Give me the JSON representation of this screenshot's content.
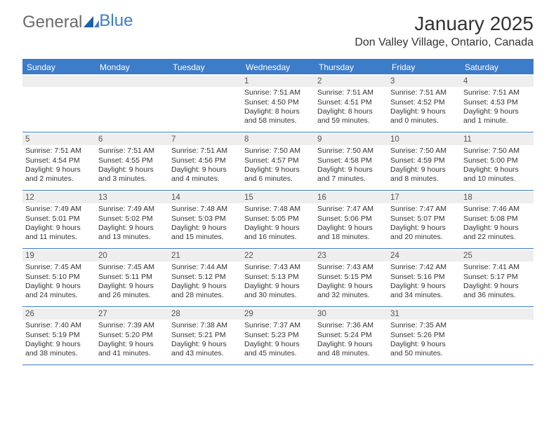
{
  "logo": {
    "part1": "General",
    "part2": "Blue"
  },
  "title": "January 2025",
  "location": "Don Valley Village, Ontario, Canada",
  "colors": {
    "accent": "#3d7cc9",
    "header_bg": "#3d7cc9",
    "header_text": "#ffffff",
    "daynum_bg": "#eeeeee",
    "text": "#333333",
    "background": "#ffffff",
    "logo_general": "#6a6a6a",
    "logo_blue": "#3d7cc9"
  },
  "typography": {
    "title_fontsize": 28,
    "location_fontsize": 16,
    "dayheader_fontsize": 12,
    "cell_fontsize": 10.5,
    "daynum_fontsize": 11.5
  },
  "day_headers": [
    "Sunday",
    "Monday",
    "Tuesday",
    "Wednesday",
    "Thursday",
    "Friday",
    "Saturday"
  ],
  "weeks": [
    [
      {
        "day": "",
        "sunrise": "",
        "sunset": "",
        "daylight1": "",
        "daylight2": ""
      },
      {
        "day": "",
        "sunrise": "",
        "sunset": "",
        "daylight1": "",
        "daylight2": ""
      },
      {
        "day": "",
        "sunrise": "",
        "sunset": "",
        "daylight1": "",
        "daylight2": ""
      },
      {
        "day": "1",
        "sunrise": "Sunrise: 7:51 AM",
        "sunset": "Sunset: 4:50 PM",
        "daylight1": "Daylight: 8 hours",
        "daylight2": "and 58 minutes."
      },
      {
        "day": "2",
        "sunrise": "Sunrise: 7:51 AM",
        "sunset": "Sunset: 4:51 PM",
        "daylight1": "Daylight: 8 hours",
        "daylight2": "and 59 minutes."
      },
      {
        "day": "3",
        "sunrise": "Sunrise: 7:51 AM",
        "sunset": "Sunset: 4:52 PM",
        "daylight1": "Daylight: 9 hours",
        "daylight2": "and 0 minutes."
      },
      {
        "day": "4",
        "sunrise": "Sunrise: 7:51 AM",
        "sunset": "Sunset: 4:53 PM",
        "daylight1": "Daylight: 9 hours",
        "daylight2": "and 1 minute."
      }
    ],
    [
      {
        "day": "5",
        "sunrise": "Sunrise: 7:51 AM",
        "sunset": "Sunset: 4:54 PM",
        "daylight1": "Daylight: 9 hours",
        "daylight2": "and 2 minutes."
      },
      {
        "day": "6",
        "sunrise": "Sunrise: 7:51 AM",
        "sunset": "Sunset: 4:55 PM",
        "daylight1": "Daylight: 9 hours",
        "daylight2": "and 3 minutes."
      },
      {
        "day": "7",
        "sunrise": "Sunrise: 7:51 AM",
        "sunset": "Sunset: 4:56 PM",
        "daylight1": "Daylight: 9 hours",
        "daylight2": "and 4 minutes."
      },
      {
        "day": "8",
        "sunrise": "Sunrise: 7:50 AM",
        "sunset": "Sunset: 4:57 PM",
        "daylight1": "Daylight: 9 hours",
        "daylight2": "and 6 minutes."
      },
      {
        "day": "9",
        "sunrise": "Sunrise: 7:50 AM",
        "sunset": "Sunset: 4:58 PM",
        "daylight1": "Daylight: 9 hours",
        "daylight2": "and 7 minutes."
      },
      {
        "day": "10",
        "sunrise": "Sunrise: 7:50 AM",
        "sunset": "Sunset: 4:59 PM",
        "daylight1": "Daylight: 9 hours",
        "daylight2": "and 8 minutes."
      },
      {
        "day": "11",
        "sunrise": "Sunrise: 7:50 AM",
        "sunset": "Sunset: 5:00 PM",
        "daylight1": "Daylight: 9 hours",
        "daylight2": "and 10 minutes."
      }
    ],
    [
      {
        "day": "12",
        "sunrise": "Sunrise: 7:49 AM",
        "sunset": "Sunset: 5:01 PM",
        "daylight1": "Daylight: 9 hours",
        "daylight2": "and 11 minutes."
      },
      {
        "day": "13",
        "sunrise": "Sunrise: 7:49 AM",
        "sunset": "Sunset: 5:02 PM",
        "daylight1": "Daylight: 9 hours",
        "daylight2": "and 13 minutes."
      },
      {
        "day": "14",
        "sunrise": "Sunrise: 7:48 AM",
        "sunset": "Sunset: 5:03 PM",
        "daylight1": "Daylight: 9 hours",
        "daylight2": "and 15 minutes."
      },
      {
        "day": "15",
        "sunrise": "Sunrise: 7:48 AM",
        "sunset": "Sunset: 5:05 PM",
        "daylight1": "Daylight: 9 hours",
        "daylight2": "and 16 minutes."
      },
      {
        "day": "16",
        "sunrise": "Sunrise: 7:47 AM",
        "sunset": "Sunset: 5:06 PM",
        "daylight1": "Daylight: 9 hours",
        "daylight2": "and 18 minutes."
      },
      {
        "day": "17",
        "sunrise": "Sunrise: 7:47 AM",
        "sunset": "Sunset: 5:07 PM",
        "daylight1": "Daylight: 9 hours",
        "daylight2": "and 20 minutes."
      },
      {
        "day": "18",
        "sunrise": "Sunrise: 7:46 AM",
        "sunset": "Sunset: 5:08 PM",
        "daylight1": "Daylight: 9 hours",
        "daylight2": "and 22 minutes."
      }
    ],
    [
      {
        "day": "19",
        "sunrise": "Sunrise: 7:45 AM",
        "sunset": "Sunset: 5:10 PM",
        "daylight1": "Daylight: 9 hours",
        "daylight2": "and 24 minutes."
      },
      {
        "day": "20",
        "sunrise": "Sunrise: 7:45 AM",
        "sunset": "Sunset: 5:11 PM",
        "daylight1": "Daylight: 9 hours",
        "daylight2": "and 26 minutes."
      },
      {
        "day": "21",
        "sunrise": "Sunrise: 7:44 AM",
        "sunset": "Sunset: 5:12 PM",
        "daylight1": "Daylight: 9 hours",
        "daylight2": "and 28 minutes."
      },
      {
        "day": "22",
        "sunrise": "Sunrise: 7:43 AM",
        "sunset": "Sunset: 5:13 PM",
        "daylight1": "Daylight: 9 hours",
        "daylight2": "and 30 minutes."
      },
      {
        "day": "23",
        "sunrise": "Sunrise: 7:43 AM",
        "sunset": "Sunset: 5:15 PM",
        "daylight1": "Daylight: 9 hours",
        "daylight2": "and 32 minutes."
      },
      {
        "day": "24",
        "sunrise": "Sunrise: 7:42 AM",
        "sunset": "Sunset: 5:16 PM",
        "daylight1": "Daylight: 9 hours",
        "daylight2": "and 34 minutes."
      },
      {
        "day": "25",
        "sunrise": "Sunrise: 7:41 AM",
        "sunset": "Sunset: 5:17 PM",
        "daylight1": "Daylight: 9 hours",
        "daylight2": "and 36 minutes."
      }
    ],
    [
      {
        "day": "26",
        "sunrise": "Sunrise: 7:40 AM",
        "sunset": "Sunset: 5:19 PM",
        "daylight1": "Daylight: 9 hours",
        "daylight2": "and 38 minutes."
      },
      {
        "day": "27",
        "sunrise": "Sunrise: 7:39 AM",
        "sunset": "Sunset: 5:20 PM",
        "daylight1": "Daylight: 9 hours",
        "daylight2": "and 41 minutes."
      },
      {
        "day": "28",
        "sunrise": "Sunrise: 7:38 AM",
        "sunset": "Sunset: 5:21 PM",
        "daylight1": "Daylight: 9 hours",
        "daylight2": "and 43 minutes."
      },
      {
        "day": "29",
        "sunrise": "Sunrise: 7:37 AM",
        "sunset": "Sunset: 5:23 PM",
        "daylight1": "Daylight: 9 hours",
        "daylight2": "and 45 minutes."
      },
      {
        "day": "30",
        "sunrise": "Sunrise: 7:36 AM",
        "sunset": "Sunset: 5:24 PM",
        "daylight1": "Daylight: 9 hours",
        "daylight2": "and 48 minutes."
      },
      {
        "day": "31",
        "sunrise": "Sunrise: 7:35 AM",
        "sunset": "Sunset: 5:26 PM",
        "daylight1": "Daylight: 9 hours",
        "daylight2": "and 50 minutes."
      },
      {
        "day": "",
        "sunrise": "",
        "sunset": "",
        "daylight1": "",
        "daylight2": ""
      }
    ]
  ]
}
